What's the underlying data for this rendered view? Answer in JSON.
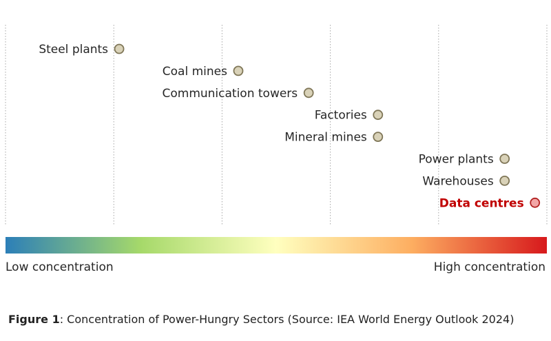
{
  "chart_data": {
    "type": "scatter",
    "title": "",
    "xlabel": "",
    "ylabel": "",
    "xlim": [
      0,
      5
    ],
    "scale": {
      "low_label": "Low concentration",
      "high_label": "High concentration",
      "gradient_colors": [
        "#2c7fb8",
        "#a6d96a",
        "#ffffbf",
        "#fdae61",
        "#d7191c"
      ]
    },
    "points": [
      {
        "label": "Steel plants",
        "x": 1.05,
        "highlight": false
      },
      {
        "label": "Coal mines",
        "x": 2.15,
        "highlight": false
      },
      {
        "label": "Communication towers",
        "x": 2.8,
        "highlight": false
      },
      {
        "label": "Factories",
        "x": 3.44,
        "highlight": false
      },
      {
        "label": "Mineral mines",
        "x": 3.44,
        "highlight": false
      },
      {
        "label": "Power plants",
        "x": 4.61,
        "highlight": false
      },
      {
        "label": "Warehouses",
        "x": 4.61,
        "highlight": false
      },
      {
        "label": "Data centres",
        "x": 4.89,
        "highlight": true
      }
    ],
    "colors": {
      "marker_fill": "#d9d2b8",
      "marker_stroke": "#7f7657",
      "highlight_fill": "#f2a6a6",
      "highlight_stroke": "#b22222",
      "grid": "#a6a6a6"
    }
  },
  "caption": {
    "prefix": "Figure 1",
    "text": ": Concentration of Power-Hungry Sectors (Source: IEA World Energy Outlook 2024)"
  }
}
